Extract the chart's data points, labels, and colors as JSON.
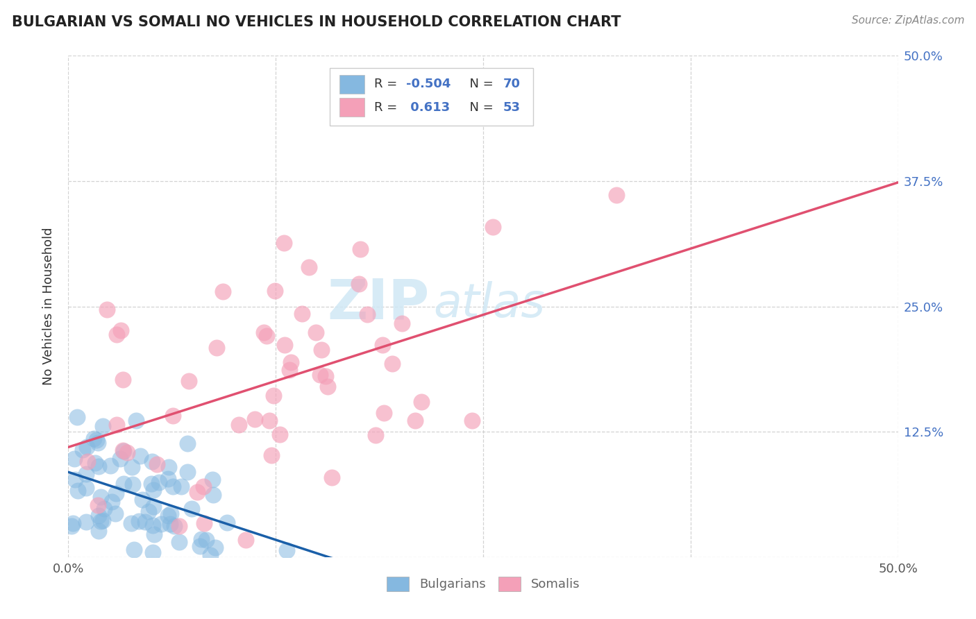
{
  "title": "BULGARIAN VS SOMALI NO VEHICLES IN HOUSEHOLD CORRELATION CHART",
  "source": "Source: ZipAtlas.com",
  "ylabel": "No Vehicles in Household",
  "xlim": [
    0,
    0.5
  ],
  "ylim": [
    0,
    0.5
  ],
  "bulgarian_R": -0.504,
  "bulgarian_N": 70,
  "somali_R": 0.613,
  "somali_N": 53,
  "blue_color": "#85b8e0",
  "pink_color": "#f4a0b8",
  "blue_line_color": "#1a5fa8",
  "pink_line_color": "#e05070",
  "background_color": "#ffffff",
  "grid_color": "#c8c8c8",
  "title_color": "#222222",
  "tick_label_color": "#4472c4",
  "legend_label_color": "#333333",
  "legend_value_color": "#4472c4",
  "watermark_color": "#d0e8f5",
  "bottom_legend_color": "#666666"
}
